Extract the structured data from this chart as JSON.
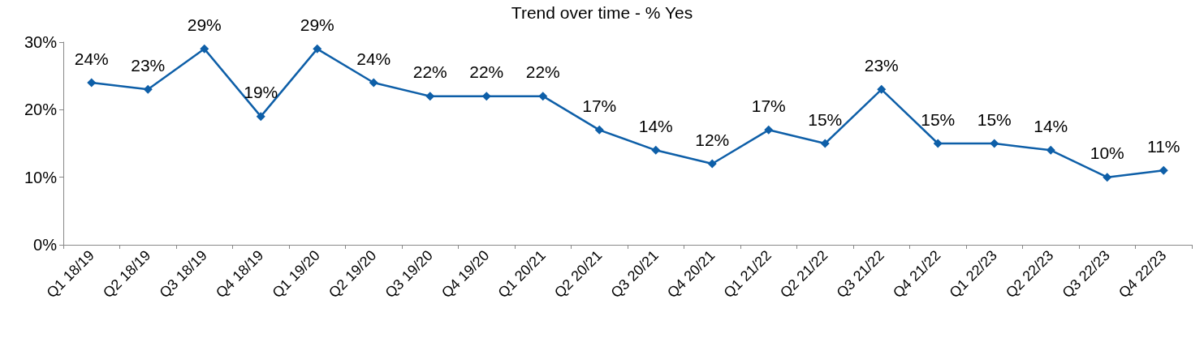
{
  "chart_data": {
    "type": "line",
    "title": "Trend over time - % Yes",
    "categories": [
      "Q1 18/19",
      "Q2 18/19",
      "Q3 18/19",
      "Q4 18/19",
      "Q1 19/20",
      "Q2 19/20",
      "Q3 19/20",
      "Q4 19/20",
      "Q1 20/21",
      "Q2 20/21",
      "Q3 20/21",
      "Q4 20/21",
      "Q1 21/22",
      "Q2 21/22",
      "Q3 21/22",
      "Q4 21/22",
      "Q1 22/23",
      "Q2 22/23",
      "Q3 22/23",
      "Q4 22/23"
    ],
    "values": [
      24,
      23,
      29,
      19,
      29,
      24,
      22,
      22,
      22,
      17,
      14,
      12,
      17,
      15,
      23,
      15,
      15,
      14,
      10,
      11
    ],
    "value_labels": [
      "24%",
      "23%",
      "29%",
      "19%",
      "29%",
      "24%",
      "22%",
      "22%",
      "22%",
      "17%",
      "14%",
      "12%",
      "17%",
      "15%",
      "23%",
      "15%",
      "15%",
      "14%",
      "10%",
      "11%"
    ],
    "color": "#0e5fa8",
    "marker": "diamond",
    "line_style": "solid",
    "grid": false,
    "ylim": [
      0,
      30
    ],
    "yticks": [
      {
        "value": 0,
        "label": "0%"
      },
      {
        "value": 10,
        "label": "10%"
      },
      {
        "value": 20,
        "label": "20%"
      },
      {
        "value": 30,
        "label": "30%"
      }
    ]
  }
}
